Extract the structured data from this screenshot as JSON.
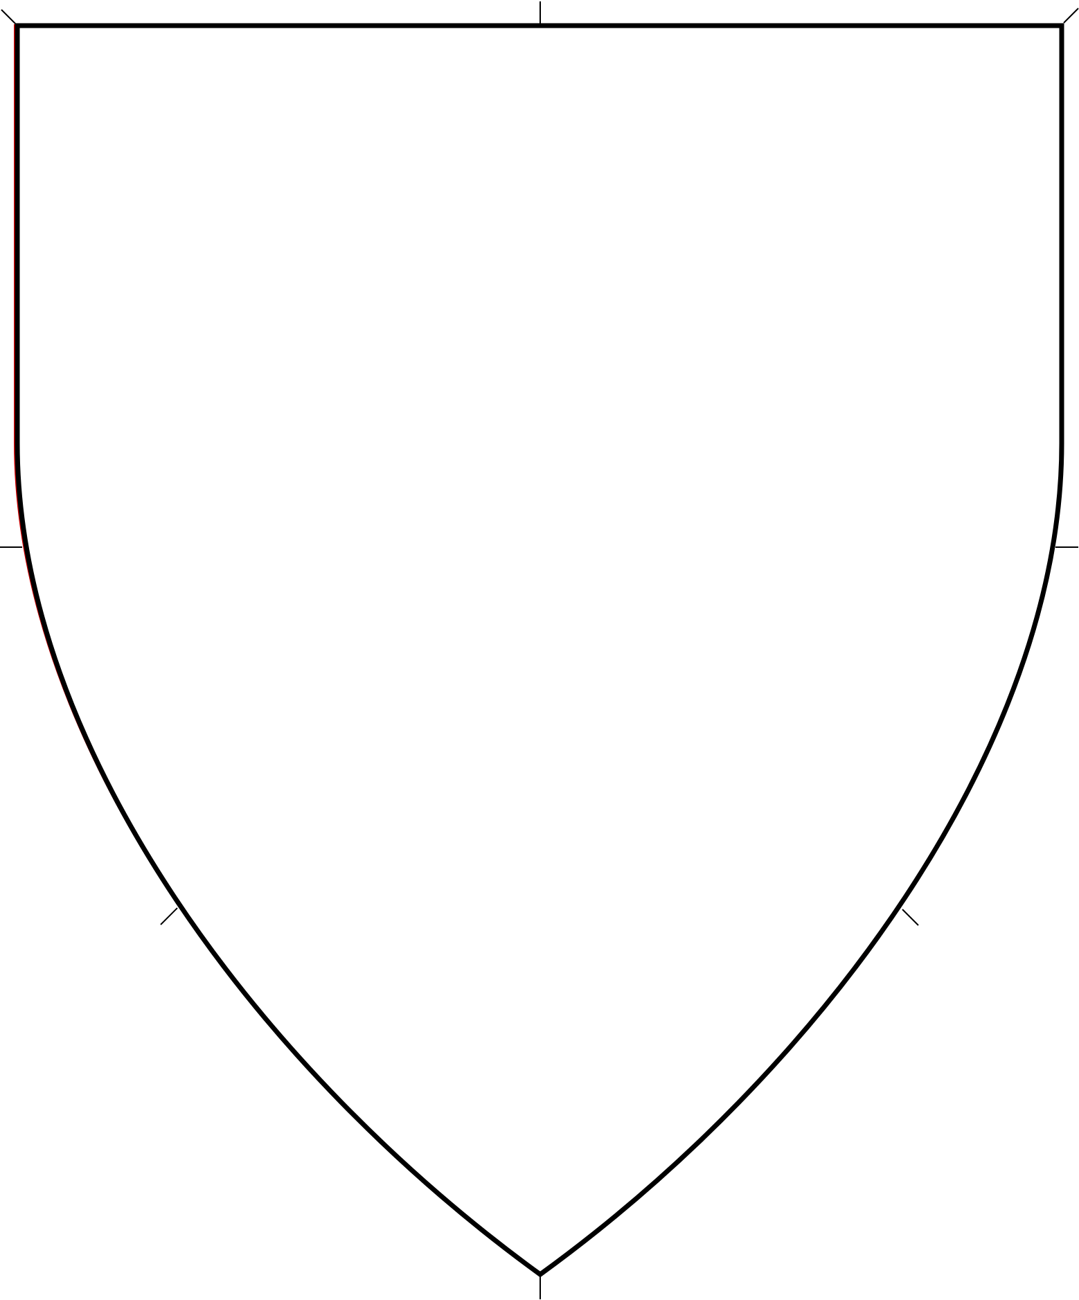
{
  "diagram": {
    "type": "heraldic-shield-outline",
    "background_color": "#ffffff",
    "outline_color": "#000000",
    "accent_color": "#cc0000",
    "tick_color": "#000000",
    "marks": [
      "top-left-corner-tick",
      "top-center-tick",
      "top-right-corner-tick",
      "left-fess-tick",
      "right-fess-tick",
      "left-lower-flank-tick",
      "right-lower-flank-tick",
      "base-point-tick"
    ]
  }
}
